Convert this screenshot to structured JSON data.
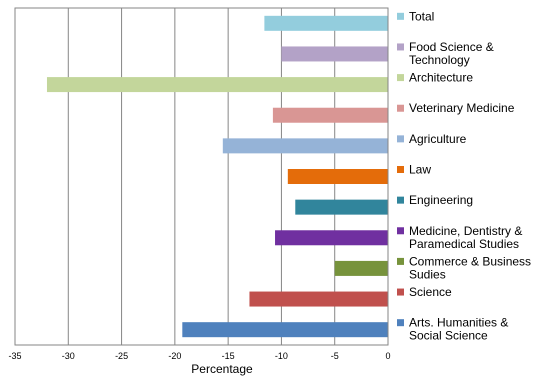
{
  "chart_data": {
    "type": "bar",
    "orientation": "horizontal",
    "title": "",
    "xlabel": "Percentage",
    "ylabel": "",
    "xlim": [
      -35,
      0
    ],
    "x_ticks": [
      "-35",
      "-30",
      "-25",
      "-20",
      "-15",
      "-10",
      "-5",
      "0"
    ],
    "grid": "vertical gridlines",
    "legend_position": "right",
    "categories": [
      {
        "label": "Total",
        "value": -11.6,
        "color": "#93cddd"
      },
      {
        "label": "Food Science & Technology",
        "value": -10.0,
        "color": "#b3a2c7"
      },
      {
        "label": "Architecture",
        "value": -32.0,
        "color": "#c3d69b"
      },
      {
        "label": "Veterinary Medicine",
        "value": -10.8,
        "color": "#d99694"
      },
      {
        "label": "Agriculture",
        "value": -15.5,
        "color": "#95b3d7"
      },
      {
        "label": "Law",
        "value": -9.4,
        "color": "#e46c0a"
      },
      {
        "label": "Engineering",
        "value": -8.7,
        "color": "#31859c"
      },
      {
        "label": "Medicine, Dentistry & Paramedical Studies",
        "value": -10.6,
        "color": "#7030a0"
      },
      {
        "label": "Commerce & Business Sudies",
        "value": -5.0,
        "color": "#77933c"
      },
      {
        "label": "Science",
        "value": -13.0,
        "color": "#c0504d"
      },
      {
        "label": "Arts. Humanities & Social Science",
        "value": -19.3,
        "color": "#4f81bd"
      }
    ],
    "legend_lines": [
      [
        "Total"
      ],
      [
        "Food Science &",
        "Technology"
      ],
      [
        "Architecture"
      ],
      [
        "Veterinary Medicine"
      ],
      [
        "Agriculture"
      ],
      [
        "Law"
      ],
      [
        "Engineering"
      ],
      [
        "Medicine, Dentistry &",
        "Paramedical Studies"
      ],
      [
        "Commerce & Business",
        "Sudies"
      ],
      [
        "Science"
      ],
      [
        "Arts. Humanities &",
        "Social Science"
      ]
    ]
  }
}
